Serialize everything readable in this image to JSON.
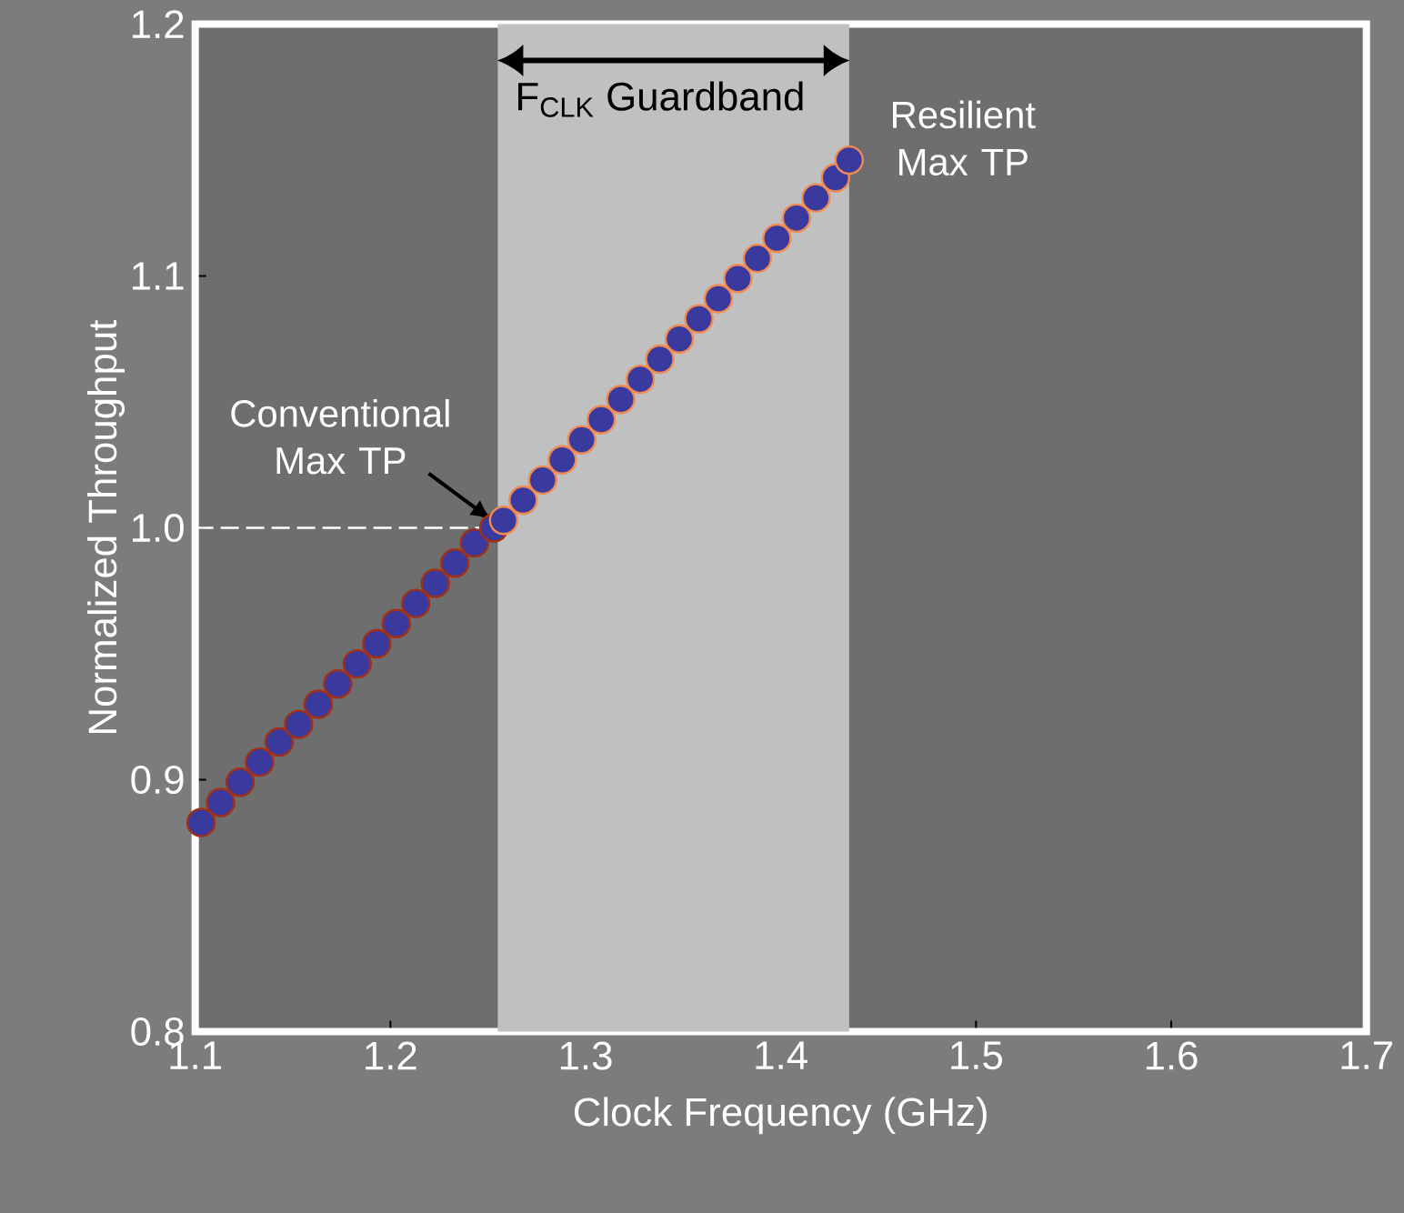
{
  "chart_data": {
    "type": "scatter",
    "xlabel": "Clock Frequency (GHz)",
    "ylabel": "Normalized Throughput",
    "xlim": [
      1.1,
      1.7
    ],
    "xticks": [
      1.1,
      1.2,
      1.3,
      1.4,
      1.5,
      1.6,
      1.7
    ],
    "ylim": [
      0.8,
      1.2
    ],
    "yticks": [
      0.8,
      0.9,
      {
        "value": 1,
        "label": "1.0"
      },
      1.1,
      1.2
    ],
    "grid": false,
    "series": [
      {
        "color": "#a03018",
        "marker": "circle",
        "x": [
          1.103,
          1.113,
          1.123,
          1.133,
          1.143,
          1.153,
          1.163,
          1.173,
          1.183,
          1.193,
          1.203,
          1.213,
          1.223,
          1.233,
          1.243,
          1.253
        ],
        "values": [
          0.883,
          0.891,
          0.899,
          0.907,
          0.915,
          0.922,
          0.93,
          0.938,
          0.946,
          0.954,
          0.962,
          0.97,
          0.978,
          0.986,
          0.994,
          1.0
        ]
      },
      {
        "color": "#f08a50",
        "marker": "circle",
        "x": [
          1.258,
          1.268,
          1.278,
          1.288,
          1.298,
          1.308,
          1.318,
          1.328,
          1.338,
          1.348,
          1.358,
          1.368,
          1.378,
          1.388,
          1.398,
          1.408,
          1.418,
          1.428,
          1.435
        ],
        "values": [
          1.003,
          1.011,
          1.019,
          1.027,
          1.035,
          1.043,
          1.051,
          1.059,
          1.067,
          1.075,
          1.083,
          1.091,
          1.099,
          1.107,
          1.115,
          1.123,
          1.131,
          1.139,
          1.146
        ]
      },
      {
        "type": "line",
        "line_style": "dashed",
        "marker": "none",
        "color": "#ffffff",
        "x": [
          1.1,
          1.255
        ],
        "values": [
          1.0,
          1.0
        ]
      }
    ],
    "bands": [
      {
        "axis": "x",
        "from": 1.255,
        "to": 1.435,
        "label": "F$_{CLK}$ Guardband",
        "color": "#c0c0c0"
      }
    ],
    "annotations": [
      {
        "text": "Conventional Max TP",
        "x": 1.255,
        "y": 1.0
      },
      {
        "text": "Resilient Max TP",
        "x": 1.435,
        "y": 1.146
      }
    ]
  }
}
